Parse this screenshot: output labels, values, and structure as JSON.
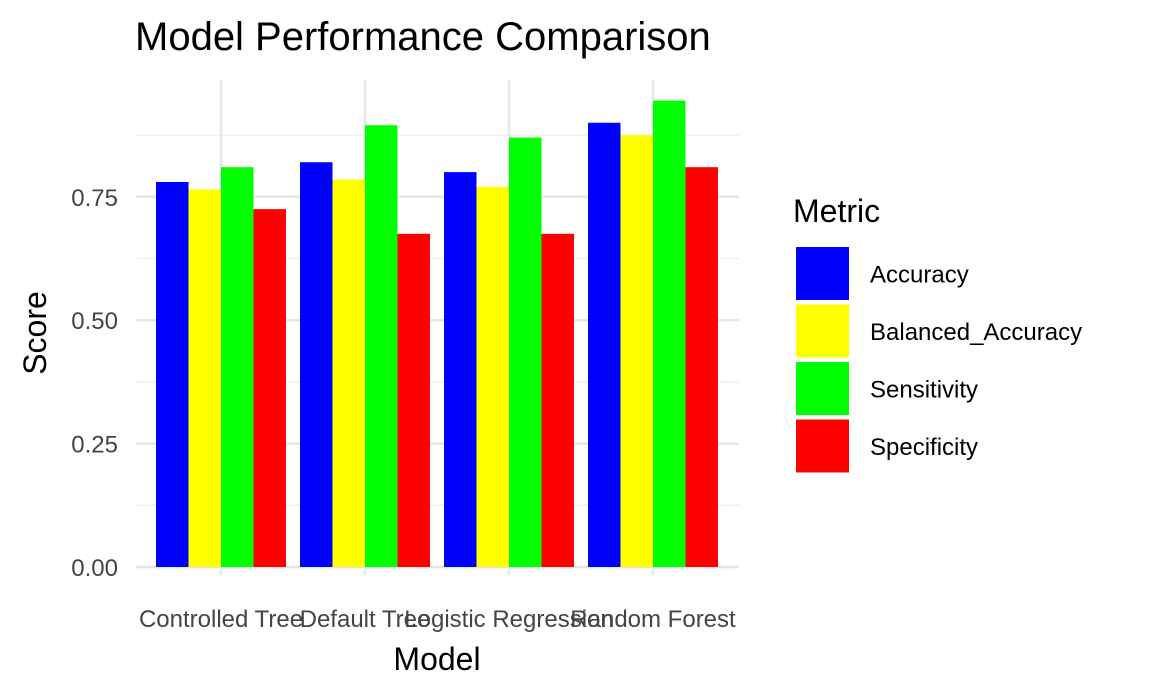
{
  "chart_data": {
    "type": "bar",
    "title": "Model Performance Comparison",
    "xlabel": "Model",
    "ylabel": "Score",
    "categories": [
      "Controlled Tree",
      "Default Tree",
      "Logistic Regression",
      "Random Forest"
    ],
    "yticks": [
      "0.00",
      "0.25",
      "0.50",
      "0.75"
    ],
    "ylim": [
      0,
      0.95
    ],
    "grid": true,
    "legend": {
      "title": "Metric",
      "placement": "right"
    },
    "series": [
      {
        "name": "Accuracy",
        "color": "#0000ff",
        "values": [
          0.78,
          0.82,
          0.8,
          0.9
        ]
      },
      {
        "name": "Balanced_Accuracy",
        "color": "#ffff00",
        "values": [
          0.765,
          0.785,
          0.77,
          0.875
        ]
      },
      {
        "name": "Sensitivity",
        "color": "#00ff00",
        "values": [
          0.81,
          0.895,
          0.87,
          0.945
        ]
      },
      {
        "name": "Specificity",
        "color": "#ff0000",
        "values": [
          0.725,
          0.675,
          0.675,
          0.81
        ]
      }
    ]
  }
}
